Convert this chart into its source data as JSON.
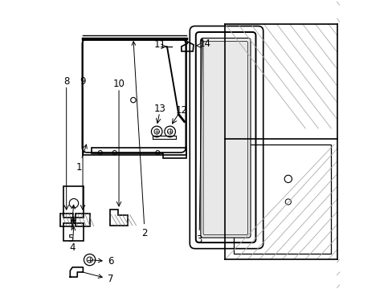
{
  "bg_color": "#ffffff",
  "line_color": "#000000",
  "figsize": [
    4.89,
    3.6
  ],
  "dpi": 100,
  "hatch_color": "#aaaaaa",
  "label_fontsize": 8.5
}
